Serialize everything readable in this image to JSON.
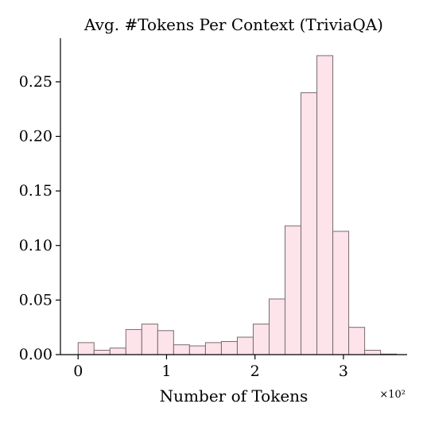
{
  "chart_data": {
    "type": "bar",
    "title": "Avg. #Tokens Per Context (TriviaQA)",
    "xlabel": "Number of Tokens",
    "ylabel": "",
    "x_multiplier": "×10²",
    "bin_edges": [
      0,
      0.18,
      0.36,
      0.54,
      0.72,
      0.9,
      1.08,
      1.26,
      1.44,
      1.62,
      1.8,
      1.98,
      2.16,
      2.34,
      2.52,
      2.7,
      2.88,
      3.06,
      3.24,
      3.42,
      3.6
    ],
    "values": [
      0.011,
      0.004,
      0.006,
      0.023,
      0.028,
      0.022,
      0.009,
      0.008,
      0.011,
      0.012,
      0.016,
      0.028,
      0.051,
      0.118,
      0.24,
      0.274,
      0.113,
      0.025,
      0.004,
      0.0005
    ],
    "xlim": [
      -0.2,
      3.72
    ],
    "ylim": [
      0,
      0.29
    ],
    "xticks": [
      0,
      1,
      2,
      3
    ],
    "xtick_labels": [
      "0",
      "1",
      "2",
      "3"
    ],
    "yticks": [
      0,
      0.05,
      0.1,
      0.15,
      0.2,
      0.25
    ],
    "ytick_labels": [
      "0.00",
      "0.05",
      "0.10",
      "0.15",
      "0.20",
      "0.25"
    ],
    "grid": false,
    "bar_color": "#fde3ea",
    "edge_color": "#7a6a70"
  }
}
